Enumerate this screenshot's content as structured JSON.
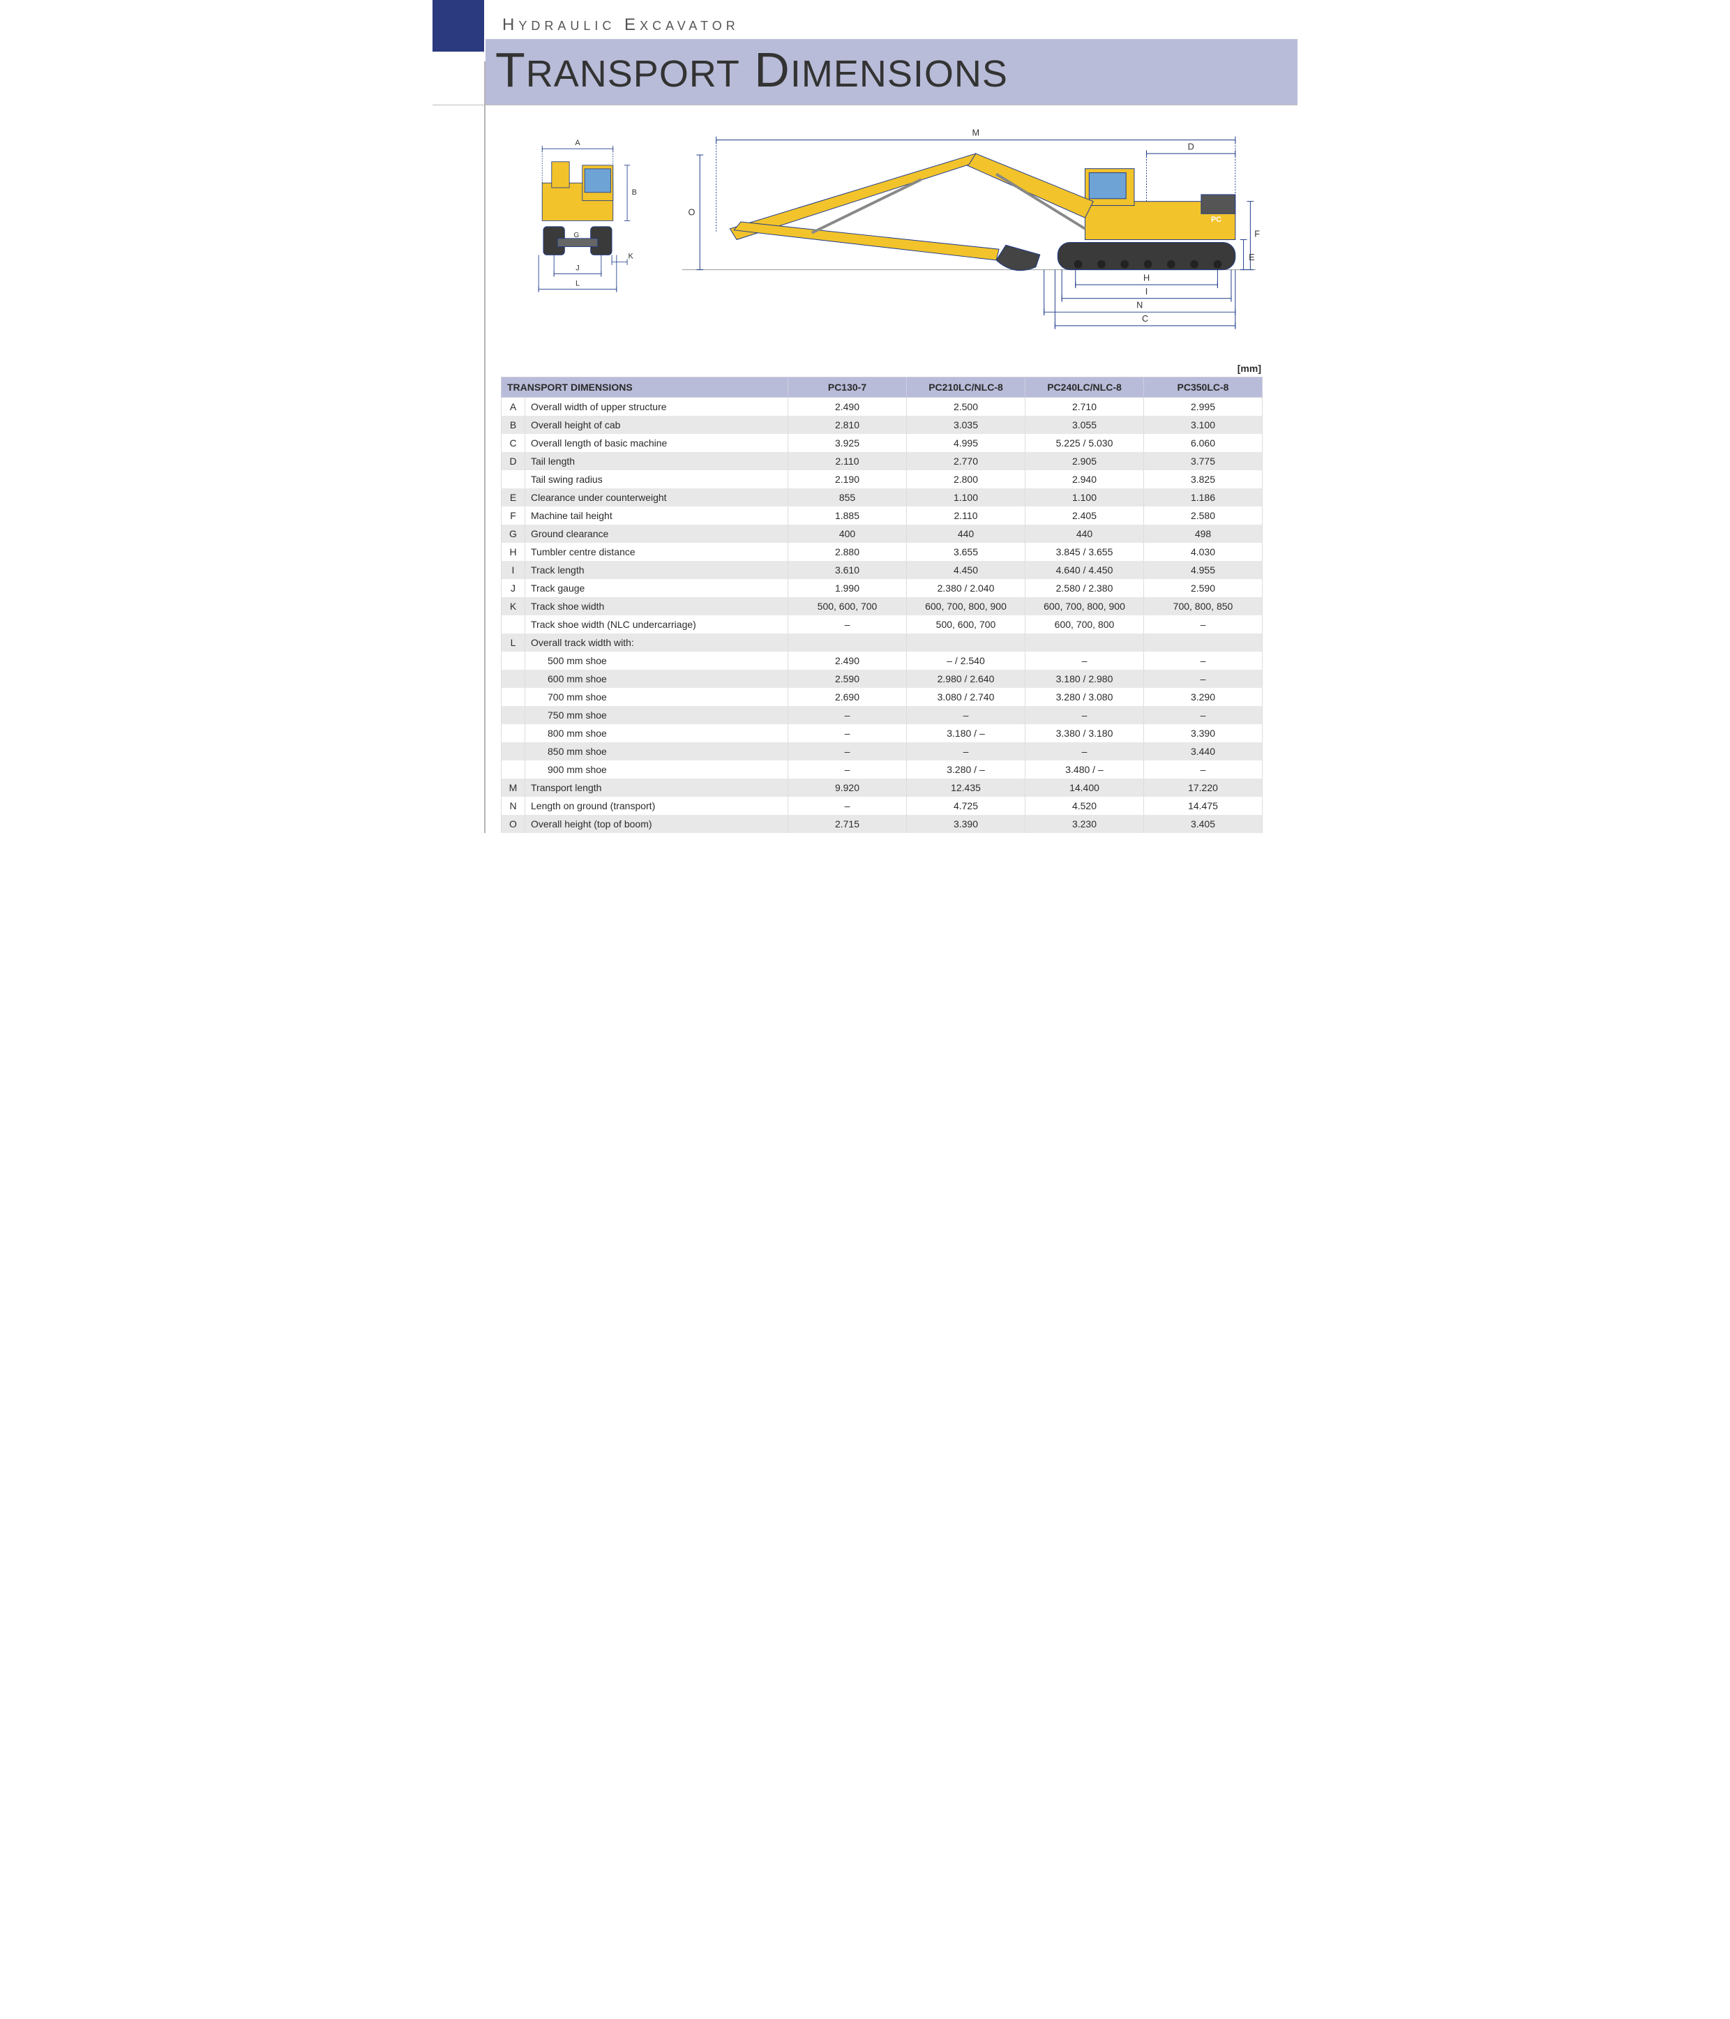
{
  "header": {
    "eyebrow_parts": [
      "H",
      "YDRAULIC",
      " E",
      "XCAVATOR"
    ],
    "title_parts": [
      "T",
      "RANSPORT",
      " D",
      "IMENSIONS"
    ]
  },
  "unit_label": "[mm]",
  "diagram": {
    "stroke": "#1e3a8a",
    "body_fill": "#f2c32b",
    "cab_glass": "#6ea3d6",
    "track_fill": "#3a3a3a",
    "front_labels": [
      "A",
      "B",
      "G",
      "J",
      "K",
      "L"
    ],
    "side_labels": [
      "M",
      "D",
      "O",
      "F",
      "E",
      "H",
      "I",
      "N",
      "C"
    ]
  },
  "table": {
    "header_label": "TRANSPORT DIMENSIONS",
    "models": [
      "PC130-7",
      "PC210LC/NLC-8",
      "PC240LC/NLC-8",
      "PC350LC-8"
    ],
    "rows": [
      {
        "code": "A",
        "label": "Overall width of upper structure",
        "vals": [
          "2.490",
          "2.500",
          "2.710",
          "2.995"
        ]
      },
      {
        "code": "B",
        "label": "Overall height of cab",
        "vals": [
          "2.810",
          "3.035",
          "3.055",
          "3.100"
        ]
      },
      {
        "code": "C",
        "label": "Overall length of basic machine",
        "vals": [
          "3.925",
          "4.995",
          "5.225 / 5.030",
          "6.060"
        ]
      },
      {
        "code": "D",
        "label": "Tail length",
        "vals": [
          "2.110",
          "2.770",
          "2.905",
          "3.775"
        ]
      },
      {
        "code": "",
        "label": "Tail swing radius",
        "vals": [
          "2.190",
          "2.800",
          "2.940",
          "3.825"
        ]
      },
      {
        "code": "E",
        "label": "Clearance under counterweight",
        "vals": [
          "855",
          "1.100",
          "1.100",
          "1.186"
        ]
      },
      {
        "code": "F",
        "label": "Machine tail height",
        "vals": [
          "1.885",
          "2.110",
          "2.405",
          "2.580"
        ]
      },
      {
        "code": "G",
        "label": "Ground clearance",
        "vals": [
          "400",
          "440",
          "440",
          "498"
        ]
      },
      {
        "code": "H",
        "label": "Tumbler centre distance",
        "vals": [
          "2.880",
          "3.655",
          "3.845 / 3.655",
          "4.030"
        ]
      },
      {
        "code": "I",
        "label": "Track length",
        "vals": [
          "3.610",
          "4.450",
          "4.640 / 4.450",
          "4.955"
        ]
      },
      {
        "code": "J",
        "label": "Track gauge",
        "vals": [
          "1.990",
          "2.380 / 2.040",
          "2.580 / 2.380",
          "2.590"
        ]
      },
      {
        "code": "K",
        "label": "Track shoe width",
        "vals": [
          "500, 600, 700",
          "600, 700, 800, 900",
          "600, 700, 800, 900",
          "700, 800, 850"
        ]
      },
      {
        "code": "",
        "label": "Track shoe width (NLC undercarriage)",
        "vals": [
          "–",
          "500, 600, 700",
          "600, 700, 800",
          "–"
        ]
      },
      {
        "code": "L",
        "label": "Overall track width with:",
        "vals": [
          "",
          "",
          "",
          ""
        ]
      },
      {
        "code": "",
        "sub": true,
        "label": "500 mm shoe",
        "vals": [
          "2.490",
          "– / 2.540",
          "–",
          "–"
        ]
      },
      {
        "code": "",
        "sub": true,
        "label": "600 mm shoe",
        "vals": [
          "2.590",
          "2.980 / 2.640",
          "3.180 / 2.980",
          "–"
        ]
      },
      {
        "code": "",
        "sub": true,
        "label": "700 mm shoe",
        "vals": [
          "2.690",
          "3.080 / 2.740",
          "3.280 / 3.080",
          "3.290"
        ]
      },
      {
        "code": "",
        "sub": true,
        "label": "750 mm shoe",
        "vals": [
          "–",
          "–",
          "–",
          "–"
        ]
      },
      {
        "code": "",
        "sub": true,
        "label": "800 mm shoe",
        "vals": [
          "–",
          "3.180 / –",
          "3.380 / 3.180",
          "3.390"
        ]
      },
      {
        "code": "",
        "sub": true,
        "label": "850 mm shoe",
        "vals": [
          "–",
          "–",
          "–",
          "3.440"
        ]
      },
      {
        "code": "",
        "sub": true,
        "label": "900 mm shoe",
        "vals": [
          "–",
          "3.280 / –",
          "3.480 / –",
          "–"
        ]
      },
      {
        "code": "M",
        "label": "Transport length",
        "vals": [
          "9.920",
          "12.435",
          "14.400",
          "17.220"
        ]
      },
      {
        "code": "N",
        "label": "Length on ground (transport)",
        "vals": [
          "–",
          "4.725",
          "4.520",
          "14.475"
        ]
      },
      {
        "code": "O",
        "label": "Overall height (top of boom)",
        "vals": [
          "2.715",
          "3.390",
          "3.230",
          "3.405"
        ]
      }
    ]
  }
}
